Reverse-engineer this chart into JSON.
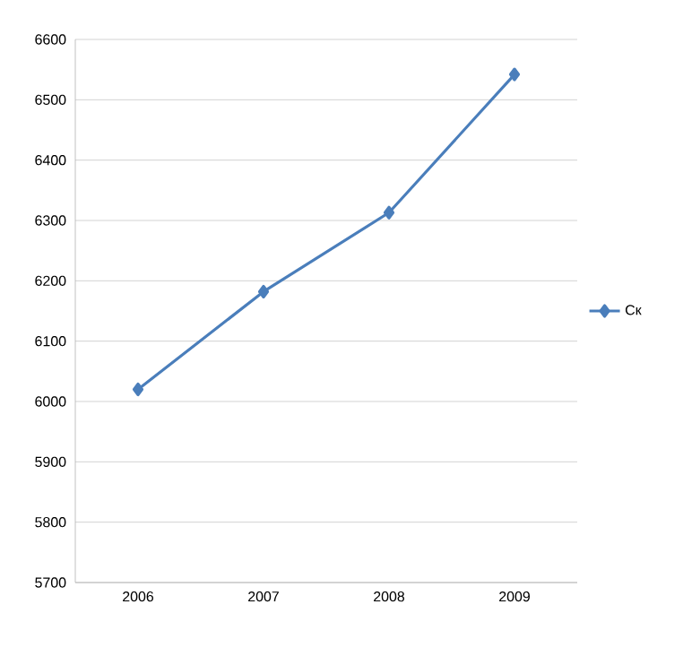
{
  "chart_data": {
    "type": "line",
    "categories": [
      "2006",
      "2007",
      "2008",
      "2009"
    ],
    "series": [
      {
        "name": "Ск",
        "color": "#4a7ebb",
        "values": [
          6020,
          6182,
          6313,
          6542
        ]
      }
    ],
    "ylim": [
      5700,
      6600
    ],
    "yticks": [
      5700,
      5800,
      5900,
      6000,
      6100,
      6200,
      6300,
      6400,
      6500,
      6600
    ],
    "grid": "y",
    "legend": "right",
    "marker": "diamond",
    "line_style": "solid"
  }
}
